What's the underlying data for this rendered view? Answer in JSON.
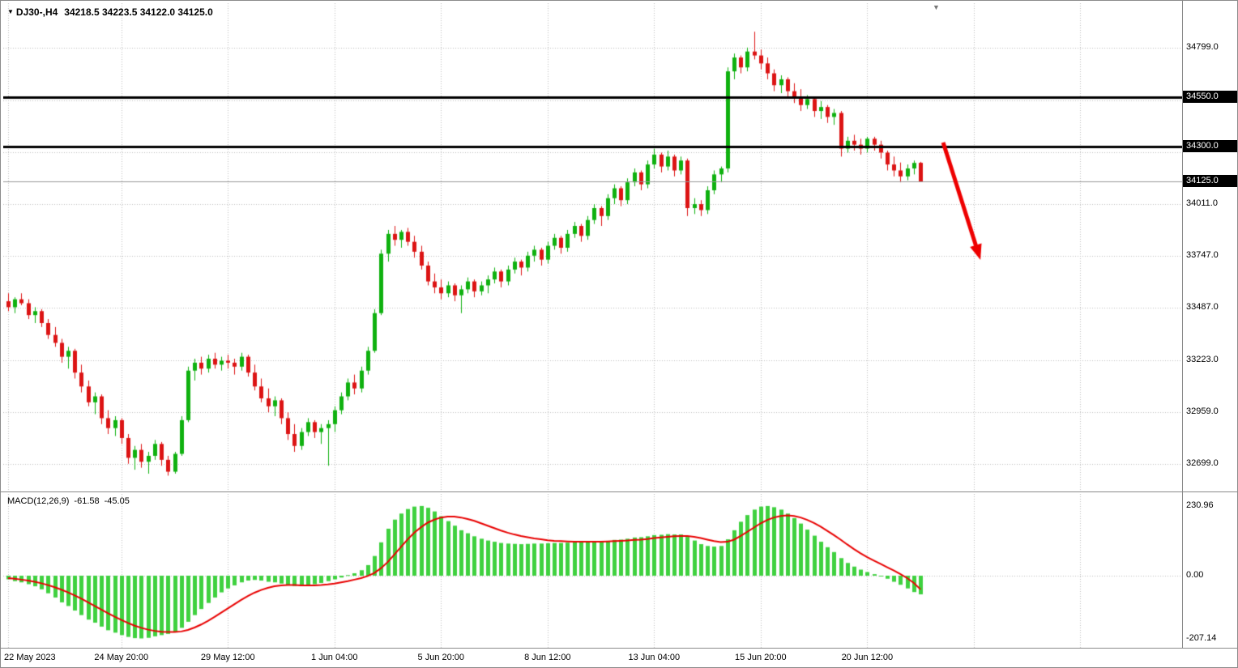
{
  "header": {
    "symbol_period": "DJ30-,H4",
    "ohlc_quote": "34218.5 34223.5 34122.0 34125.0",
    "dropdown_icon": "symbol-dropdown"
  },
  "macd_panel": {
    "indicator_label": "MACD(12,26,9)",
    "value_main": "-61.58",
    "value_signal": "-45.05"
  },
  "colors": {
    "up": "#0fb10f",
    "down": "#dc1414",
    "hist": "#3fd13f",
    "signal": "#e80000",
    "grid": "#bdbdbd",
    "hline": "#000000",
    "price_line": "#999999",
    "arrow": "#ee0000",
    "axis_tag_bg": "#000000",
    "axis_tag_text": "#ffffff"
  },
  "chart_data": [
    {
      "type": "candlestick",
      "title": "DJ30-,H4",
      "timeframe": "H4",
      "x_labels": [
        "22 May 2023",
        "24 May 20:00",
        "29 May 12:00",
        "1 Jun 04:00",
        "5 Jun 20:00",
        "8 Jun 12:00",
        "13 Jun 04:00",
        "15 Jun 20:00",
        "20 Jun 12:00"
      ],
      "x_label_bars": [
        0,
        17,
        33,
        49,
        65,
        81,
        97,
        113,
        129
      ],
      "grid_bars": [
        0,
        17,
        33,
        49,
        65,
        81,
        97,
        113,
        129,
        145,
        161,
        177
      ],
      "y_axis_labels": [
        34799.0,
        34011.0,
        33747.0,
        33487.0,
        33223.0,
        32959.0,
        32699.0
      ],
      "grid_prices": [
        34799,
        34535,
        34273,
        34011,
        33747,
        33487,
        33223,
        32959,
        32699
      ],
      "ylim": [
        32630,
        35020
      ],
      "hlines": [
        {
          "price": 34550.0,
          "label": "34550.0"
        },
        {
          "price": 34300.0,
          "label": "34300.0"
        }
      ],
      "price_line": {
        "price": 34125.0,
        "label": "34125.0"
      },
      "arrow": {
        "bar1": 140.4,
        "price1": 34321,
        "bar2": 146.0,
        "price2": 33729
      },
      "candles": [
        [
          33520,
          33560,
          33470,
          33490
        ],
        [
          33490,
          33540,
          33460,
          33530
        ],
        [
          33530,
          33560,
          33500,
          33510
        ],
        [
          33510,
          33530,
          33430,
          33450
        ],
        [
          33450,
          33490,
          33410,
          33470
        ],
        [
          33470,
          33480,
          33390,
          33410
        ],
        [
          33410,
          33430,
          33330,
          33350
        ],
        [
          33350,
          33390,
          33290,
          33310
        ],
        [
          33310,
          33330,
          33210,
          33240
        ],
        [
          33240,
          33290,
          33180,
          33270
        ],
        [
          33270,
          33280,
          33130,
          33160
        ],
        [
          33160,
          33200,
          33060,
          33090
        ],
        [
          33090,
          33120,
          32990,
          33010
        ],
        [
          33010,
          33060,
          32950,
          33040
        ],
        [
          33040,
          33050,
          32900,
          32930
        ],
        [
          32930,
          32970,
          32850,
          32880
        ],
        [
          32880,
          32940,
          32840,
          32920
        ],
        [
          32920,
          32930,
          32800,
          32830
        ],
        [
          32830,
          32850,
          32700,
          32730
        ],
        [
          32730,
          32790,
          32670,
          32770
        ],
        [
          32770,
          32800,
          32680,
          32710
        ],
        [
          32710,
          32760,
          32650,
          32740
        ],
        [
          32740,
          32820,
          32720,
          32800
        ],
        [
          32800,
          32810,
          32690,
          32720
        ],
        [
          32720,
          32740,
          32640,
          32660
        ],
        [
          32660,
          32760,
          32650,
          32750
        ],
        [
          32750,
          32940,
          32740,
          32920
        ],
        [
          32920,
          33190,
          32910,
          33170
        ],
        [
          33170,
          33230,
          33120,
          33210
        ],
        [
          33210,
          33240,
          33150,
          33180
        ],
        [
          33180,
          33250,
          33160,
          33230
        ],
        [
          33230,
          33260,
          33180,
          33200
        ],
        [
          33200,
          33240,
          33170,
          33220
        ],
        [
          33220,
          33250,
          33180,
          33210
        ],
        [
          33210,
          33230,
          33150,
          33190
        ],
        [
          33190,
          33260,
          33170,
          33240
        ],
        [
          33240,
          33250,
          33140,
          33160
        ],
        [
          33160,
          33200,
          33070,
          33090
        ],
        [
          33090,
          33130,
          33010,
          33030
        ],
        [
          33030,
          33080,
          32960,
          32990
        ],
        [
          32990,
          33040,
          32940,
          33020
        ],
        [
          33020,
          33030,
          32900,
          32930
        ],
        [
          32930,
          32960,
          32820,
          32850
        ],
        [
          32850,
          32900,
          32760,
          32790
        ],
        [
          32790,
          32880,
          32770,
          32860
        ],
        [
          32860,
          32930,
          32840,
          32910
        ],
        [
          32910,
          32920,
          32830,
          32860
        ],
        [
          32860,
          32900,
          32800,
          32880
        ],
        [
          32880,
          32920,
          32690,
          32900
        ],
        [
          32900,
          32990,
          32860,
          32970
        ],
        [
          32970,
          33060,
          32950,
          33040
        ],
        [
          33040,
          33130,
          33020,
          33110
        ],
        [
          33110,
          33150,
          33050,
          33080
        ],
        [
          33080,
          33190,
          33060,
          33170
        ],
        [
          33170,
          33290,
          33150,
          33270
        ],
        [
          33270,
          33480,
          33260,
          33460
        ],
        [
          33460,
          33780,
          33450,
          33760
        ],
        [
          33760,
          33880,
          33720,
          33860
        ],
        [
          33860,
          33900,
          33800,
          33830
        ],
        [
          33830,
          33880,
          33790,
          33870
        ],
        [
          33870,
          33890,
          33800,
          33820
        ],
        [
          33820,
          33850,
          33740,
          33770
        ],
        [
          33770,
          33800,
          33680,
          33700
        ],
        [
          33700,
          33720,
          33600,
          33620
        ],
        [
          33620,
          33660,
          33560,
          33590
        ],
        [
          33590,
          33630,
          33530,
          33560
        ],
        [
          33560,
          33620,
          33540,
          33600
        ],
        [
          33600,
          33610,
          33520,
          33550
        ],
        [
          33550,
          33600,
          33460,
          33580
        ],
        [
          33580,
          33640,
          33560,
          33620
        ],
        [
          33620,
          33630,
          33540,
          33570
        ],
        [
          33570,
          33620,
          33550,
          33600
        ],
        [
          33600,
          33650,
          33560,
          33630
        ],
        [
          33630,
          33690,
          33610,
          33670
        ],
        [
          33670,
          33680,
          33590,
          33620
        ],
        [
          33620,
          33700,
          33600,
          33680
        ],
        [
          33680,
          33740,
          33660,
          33720
        ],
        [
          33720,
          33730,
          33650,
          33690
        ],
        [
          33690,
          33770,
          33670,
          33750
        ],
        [
          33750,
          33800,
          33720,
          33780
        ],
        [
          33780,
          33790,
          33700,
          33730
        ],
        [
          33730,
          33820,
          33710,
          33800
        ],
        [
          33800,
          33860,
          33780,
          33840
        ],
        [
          33840,
          33850,
          33760,
          33790
        ],
        [
          33790,
          33880,
          33770,
          33860
        ],
        [
          33860,
          33920,
          33840,
          33900
        ],
        [
          33900,
          33910,
          33820,
          33850
        ],
        [
          33850,
          33950,
          33830,
          33930
        ],
        [
          33930,
          34010,
          33910,
          33990
        ],
        [
          33990,
          34000,
          33900,
          33950
        ],
        [
          33950,
          34060,
          33930,
          34040
        ],
        [
          34040,
          34110,
          34010,
          34090
        ],
        [
          34090,
          34100,
          34000,
          34030
        ],
        [
          34030,
          34140,
          34010,
          34120
        ],
        [
          34120,
          34190,
          34100,
          34170
        ],
        [
          34170,
          34180,
          34080,
          34110
        ],
        [
          34110,
          34230,
          34090,
          34210
        ],
        [
          34210,
          34290,
          34190,
          34260
        ],
        [
          34260,
          34270,
          34170,
          34200
        ],
        [
          34200,
          34280,
          34180,
          34250
        ],
        [
          34250,
          34260,
          34150,
          34180
        ],
        [
          34180,
          34250,
          34160,
          34230
        ],
        [
          34230,
          34240,
          33950,
          33990
        ],
        [
          33990,
          34040,
          33960,
          34010
        ],
        [
          34010,
          34030,
          33950,
          33980
        ],
        [
          33980,
          34100,
          33960,
          34080
        ],
        [
          34080,
          34180,
          34060,
          34160
        ],
        [
          34160,
          34200,
          34120,
          34190
        ],
        [
          34190,
          34700,
          34170,
          34680
        ],
        [
          34680,
          34770,
          34640,
          34750
        ],
        [
          34750,
          34760,
          34670,
          34700
        ],
        [
          34700,
          34800,
          34680,
          34780
        ],
        [
          34780,
          34880,
          34740,
          34760
        ],
        [
          34760,
          34790,
          34690,
          34720
        ],
        [
          34720,
          34750,
          34640,
          34670
        ],
        [
          34670,
          34690,
          34580,
          34610
        ],
        [
          34610,
          34660,
          34570,
          34640
        ],
        [
          34640,
          34650,
          34550,
          34580
        ],
        [
          34580,
          34620,
          34520,
          34550
        ],
        [
          34550,
          34590,
          34480,
          34510
        ],
        [
          34510,
          34560,
          34490,
          34540
        ],
        [
          34540,
          34550,
          34450,
          34480
        ],
        [
          34480,
          34530,
          34440,
          34500
        ],
        [
          34500,
          34510,
          34420,
          34450
        ],
        [
          34450,
          34490,
          34410,
          34470
        ],
        [
          34470,
          34480,
          34250,
          34290
        ],
        [
          34290,
          34350,
          34270,
          34330
        ],
        [
          34330,
          34360,
          34280,
          34310
        ],
        [
          34310,
          34340,
          34260,
          34290
        ],
        [
          34290,
          34350,
          34270,
          34340
        ],
        [
          34340,
          34350,
          34280,
          34310
        ],
        [
          34310,
          34330,
          34240,
          34270
        ],
        [
          34270,
          34280,
          34180,
          34210
        ],
        [
          34210,
          34250,
          34150,
          34180
        ],
        [
          34180,
          34220,
          34120,
          34150
        ],
        [
          34150,
          34210,
          34130,
          34190
        ],
        [
          34190,
          34230,
          34160,
          34218
        ],
        [
          34218.5,
          34223.5,
          34122,
          34125
        ]
      ]
    },
    {
      "type": "bar",
      "title": "MACD(12,26,9)",
      "current_macd": -61.58,
      "current_signal": -45.05,
      "y_axis_labels": [
        {
          "value": 230.96,
          "label": "230.96"
        },
        {
          "value": 0,
          "label": "0.00"
        },
        {
          "value": -207.14,
          "label": "-207.14"
        }
      ],
      "ylim": [
        -240,
        255
      ],
      "histogram": [
        -12,
        -18,
        -22,
        -28,
        -35,
        -45,
        -58,
        -72,
        -88,
        -100,
        -115,
        -130,
        -145,
        -155,
        -168,
        -180,
        -188,
        -196,
        -202,
        -206,
        -207,
        -205,
        -200,
        -196,
        -192,
        -185,
        -172,
        -152,
        -130,
        -110,
        -90,
        -72,
        -55,
        -42,
        -32,
        -22,
        -16,
        -14,
        -16,
        -20,
        -22,
        -26,
        -30,
        -34,
        -34,
        -30,
        -28,
        -24,
        -18,
        -12,
        -6,
        2,
        8,
        18,
        35,
        65,
        110,
        155,
        185,
        205,
        220,
        228,
        230,
        224,
        212,
        196,
        180,
        165,
        150,
        140,
        130,
        122,
        116,
        112,
        108,
        106,
        105,
        104,
        105,
        106,
        106,
        107,
        108,
        108,
        109,
        110,
        110,
        111,
        113,
        113,
        115,
        118,
        119,
        122,
        126,
        127,
        130,
        134,
        135,
        137,
        136,
        136,
        128,
        116,
        104,
        98,
        96,
        98,
        120,
        150,
        178,
        200,
        218,
        228,
        230,
        226,
        218,
        205,
        190,
        172,
        152,
        132,
        112,
        94,
        78,
        58,
        42,
        30,
        20,
        12,
        5,
        -2,
        -10,
        -20,
        -30,
        -42,
        -54,
        -61.58
      ],
      "signal": [
        -8,
        -10,
        -13,
        -16,
        -20,
        -25,
        -31,
        -38,
        -46,
        -55,
        -65,
        -76,
        -88,
        -100,
        -112,
        -124,
        -135,
        -146,
        -156,
        -165,
        -172,
        -178,
        -182,
        -185,
        -186,
        -186,
        -184,
        -179,
        -171,
        -161,
        -149,
        -136,
        -122,
        -108,
        -94,
        -80,
        -67,
        -56,
        -47,
        -40,
        -35,
        -32,
        -31,
        -31,
        -32,
        -32,
        -32,
        -31,
        -29,
        -26,
        -22,
        -18,
        -13,
        -8,
        -1,
        9,
        25,
        45,
        70,
        95,
        120,
        142,
        160,
        175,
        185,
        192,
        195,
        195,
        192,
        187,
        181,
        173,
        165,
        157,
        149,
        142,
        136,
        131,
        127,
        123,
        120,
        117,
        115,
        114,
        113,
        112,
        112,
        112,
        112,
        112,
        113,
        114,
        115,
        116,
        118,
        119,
        121,
        124,
        126,
        128,
        130,
        131,
        131,
        128,
        124,
        119,
        114,
        111,
        112,
        119,
        131,
        145,
        159,
        173,
        184,
        192,
        197,
        199,
        197,
        192,
        184,
        174,
        162,
        148,
        134,
        119,
        103,
        88,
        74,
        61,
        50,
        39,
        28,
        17,
        5,
        -8,
        -24,
        -45.05
      ]
    }
  ]
}
